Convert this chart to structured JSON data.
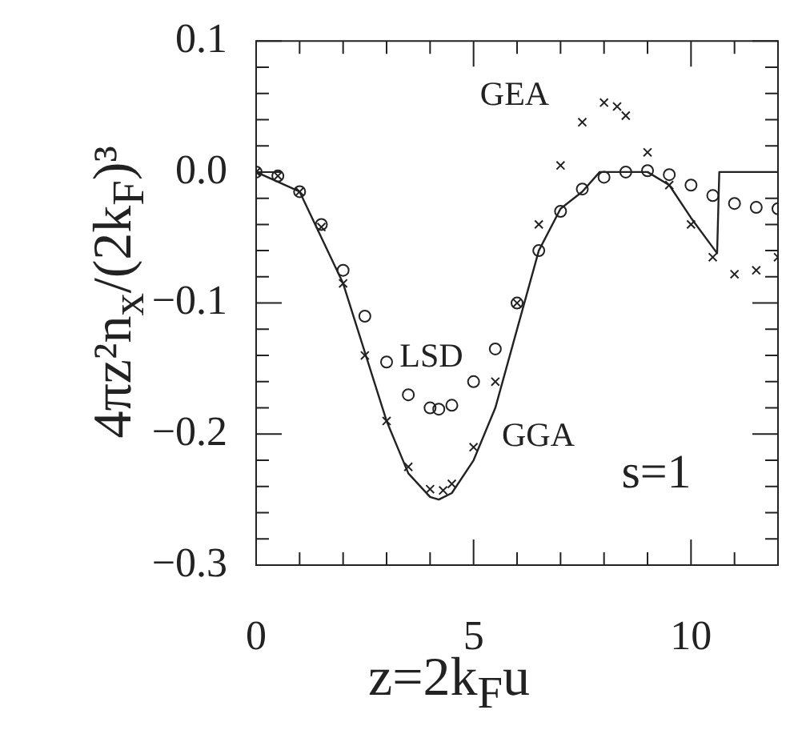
{
  "chart_data": {
    "type": "line",
    "xlabel": "z=2k$_{F}$u",
    "ylabel": "4πz²n$_{x}$/(2k$_{F}$)³",
    "xlim": [
      0,
      12
    ],
    "ylim": [
      -0.3,
      0.1
    ],
    "xticks": [
      0,
      5,
      10
    ],
    "yticks": [
      -0.3,
      -0.2,
      -0.1,
      {
        "value": 0,
        "label": "0.0"
      },
      0.1
    ],
    "annotations": [
      "s=1"
    ],
    "series": [
      {
        "name": "LSD",
        "type": "scatter",
        "marker": "circle",
        "color": "#222222",
        "x": [
          0,
          0.5,
          1,
          1.5,
          2,
          2.5,
          3,
          3.5,
          4,
          4.2,
          4.5,
          5,
          5.5,
          6,
          6.5,
          7,
          7.5,
          8,
          8.5,
          9,
          9.5,
          10,
          10.5,
          11,
          11.5,
          12
        ],
        "values": [
          0,
          -0.003,
          -0.015,
          -0.04,
          -0.075,
          -0.11,
          -0.145,
          -0.17,
          -0.18,
          -0.181,
          -0.178,
          -0.16,
          -0.135,
          -0.1,
          -0.06,
          -0.03,
          -0.013,
          -0.004,
          0,
          0.001,
          -0.002,
          -0.01,
          -0.018,
          -0.024,
          -0.027,
          -0.028
        ]
      },
      {
        "name": "GEA",
        "type": "scatter",
        "marker": "cross",
        "color": "#222222",
        "x": [
          0,
          0.5,
          1,
          1.5,
          2,
          2.5,
          3,
          3.5,
          4,
          4.3,
          4.5,
          5,
          5.5,
          6,
          6.5,
          7,
          7.5,
          8,
          8.3,
          8.5,
          9,
          9.5,
          10,
          10.5,
          11,
          11.5,
          12
        ],
        "values": [
          0,
          -0.003,
          -0.015,
          -0.042,
          -0.085,
          -0.14,
          -0.19,
          -0.225,
          -0.242,
          -0.243,
          -0.238,
          -0.21,
          -0.16,
          -0.1,
          -0.04,
          0.005,
          0.038,
          0.053,
          0.05,
          0.043,
          0.015,
          -0.01,
          -0.04,
          -0.065,
          -0.078,
          -0.075,
          -0.065
        ]
      },
      {
        "name": "GGA",
        "marker": "none",
        "line_style": "solid",
        "color": "#222222",
        "x": [
          0,
          1,
          2,
          3,
          3.5,
          4,
          4.2,
          4.5,
          5,
          5.5,
          6,
          6.5,
          7,
          7.5,
          7.9,
          9,
          9.5,
          10,
          10.6,
          10.65,
          12
        ],
        "values": [
          0,
          -0.015,
          -0.085,
          -0.19,
          -0.23,
          -0.248,
          -0.25,
          -0.245,
          -0.22,
          -0.18,
          -0.12,
          -0.06,
          -0.028,
          -0.015,
          0,
          0,
          -0.01,
          -0.035,
          -0.062,
          0,
          0
        ]
      }
    ]
  }
}
